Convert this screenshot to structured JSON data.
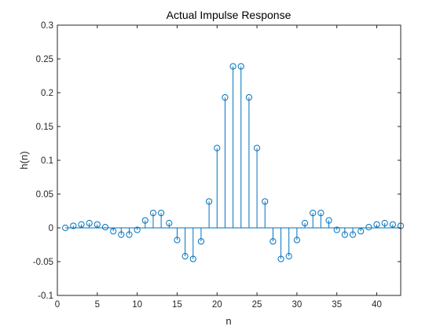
{
  "chart_data": {
    "type": "stem",
    "title": "Actual Impulse Response",
    "xlabel": "n",
    "ylabel": "h(n)",
    "xlim": [
      0,
      43
    ],
    "ylim": [
      -0.1,
      0.3
    ],
    "xticks": [
      0,
      5,
      10,
      15,
      20,
      25,
      30,
      35,
      40
    ],
    "yticks": [
      -0.1,
      -0.05,
      0,
      0.05,
      0.1,
      0.15,
      0.2,
      0.25,
      0.3
    ],
    "ytick_labels": [
      "-0.1",
      "-0.05",
      "0",
      "0.05",
      "0.1",
      "0.15",
      "0.2",
      "0.25",
      "0.3"
    ],
    "grid": false,
    "marker": "open-circle",
    "color": "#0072BD",
    "x": [
      1,
      2,
      3,
      4,
      5,
      6,
      7,
      8,
      9,
      10,
      11,
      12,
      13,
      14,
      15,
      16,
      17,
      18,
      19,
      20,
      21,
      22,
      23,
      24,
      25,
      26,
      27,
      28,
      29,
      30,
      31,
      32,
      33,
      34,
      35,
      36,
      37,
      38,
      39,
      40,
      41,
      42,
      43
    ],
    "y": [
      0.0,
      0.003,
      0.005,
      0.007,
      0.005,
      0.001,
      -0.005,
      -0.01,
      -0.01,
      -0.003,
      0.011,
      0.022,
      0.022,
      0.007,
      -0.018,
      -0.042,
      -0.046,
      -0.02,
      0.039,
      0.118,
      0.193,
      0.239,
      0.239,
      0.193,
      0.118,
      0.039,
      -0.02,
      -0.046,
      -0.042,
      -0.018,
      0.007,
      0.022,
      0.022,
      0.011,
      -0.003,
      -0.01,
      -0.01,
      -0.005,
      0.001,
      0.005,
      0.007,
      0.005,
      0.003
    ]
  }
}
